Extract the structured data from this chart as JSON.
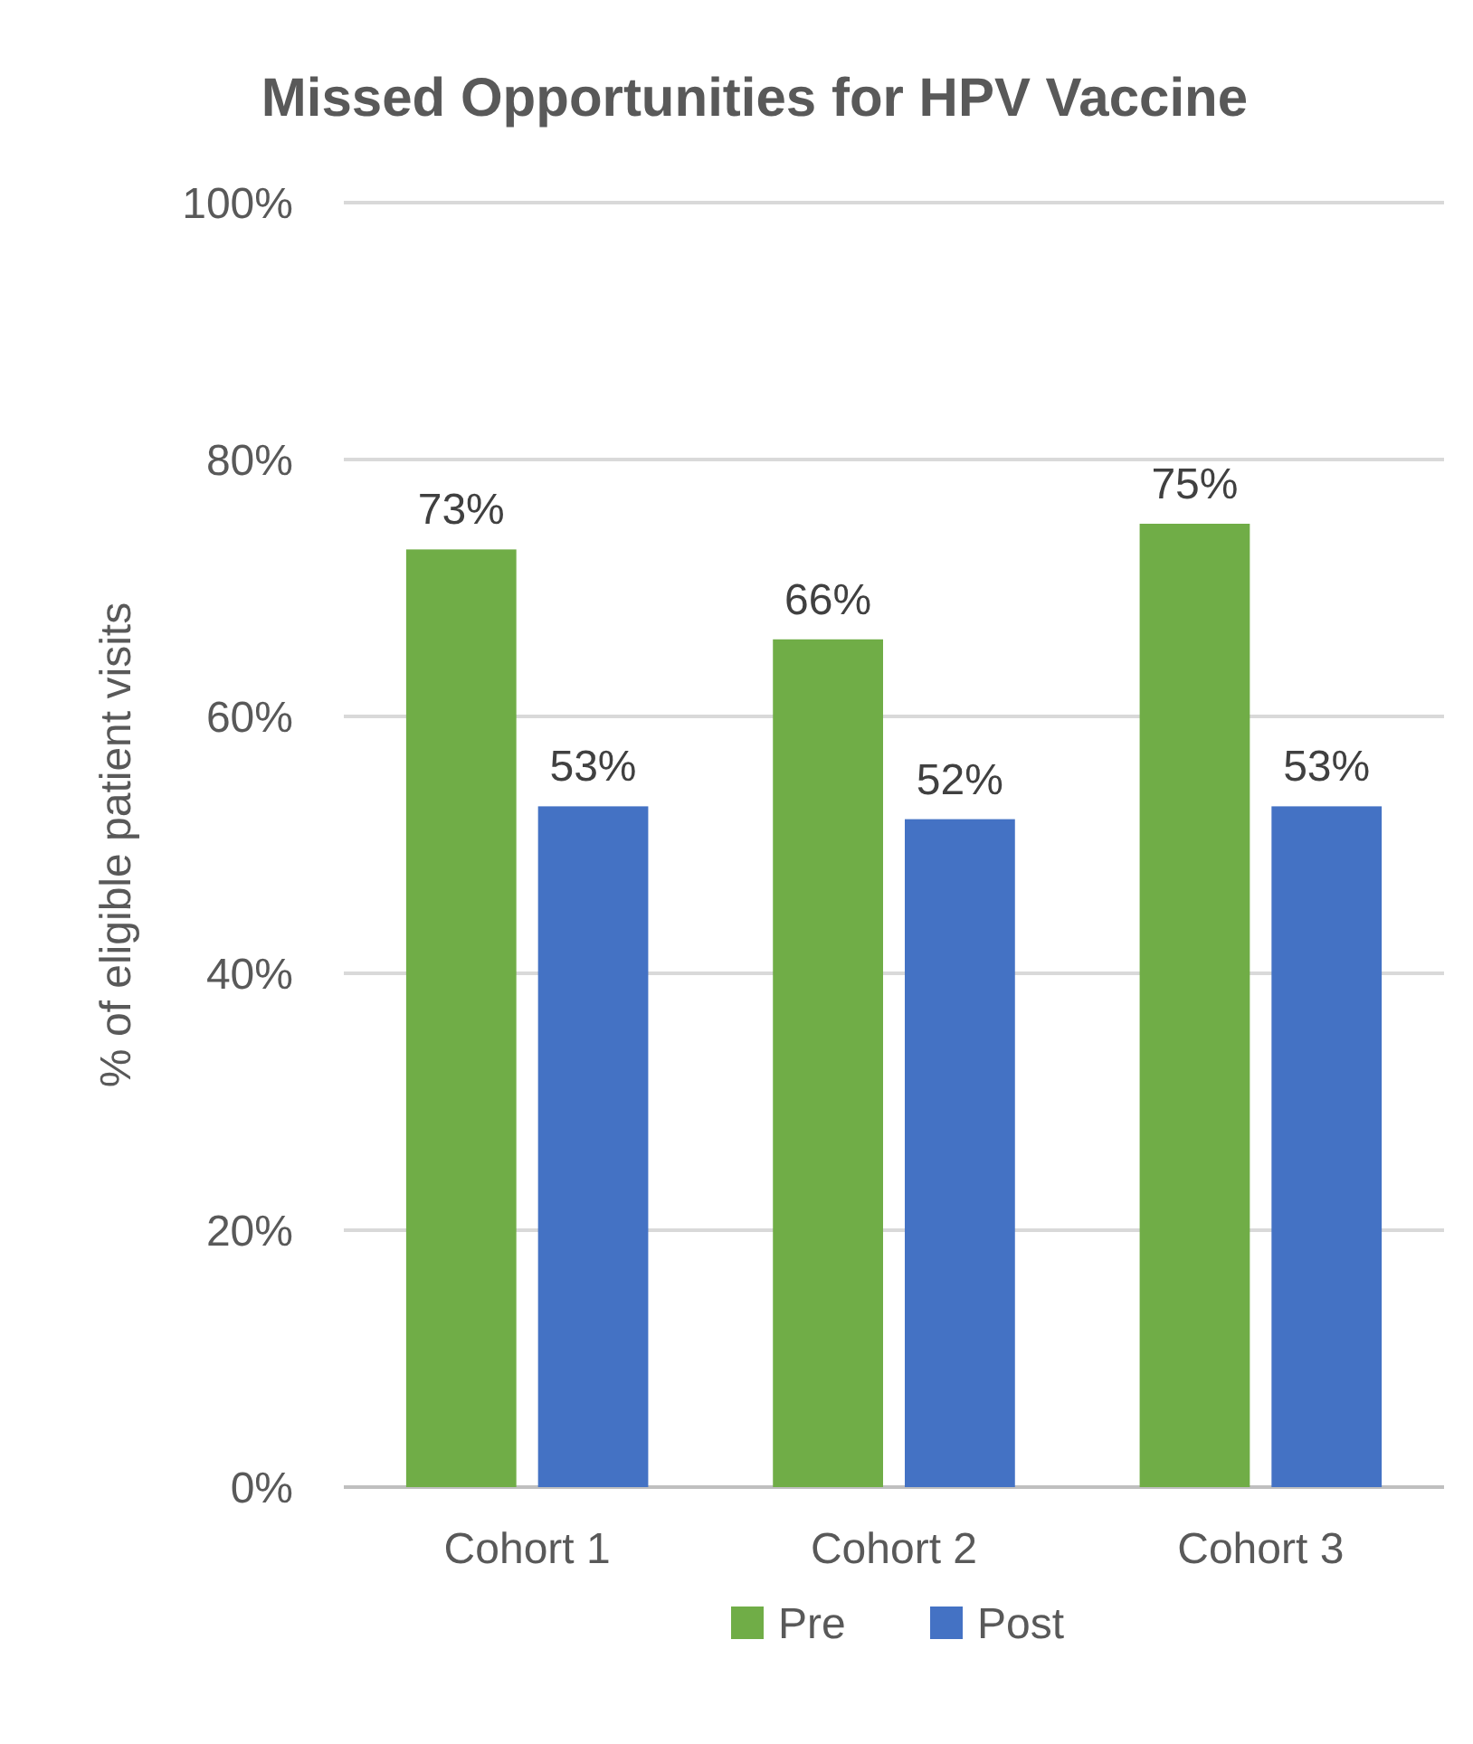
{
  "chart_data": {
    "type": "bar",
    "title": "Missed Opportunities for HPV Vaccine",
    "ylabel": "% of eligible patient visits",
    "categories": [
      "Cohort 1",
      "Cohort 2",
      "Cohort 3"
    ],
    "series": [
      {
        "name": "Pre",
        "color": "#70ad47",
        "values": [
          73,
          66,
          75
        ],
        "value_labels": [
          "73%",
          "66%",
          "75%"
        ]
      },
      {
        "name": "Post",
        "color": "#4472c4",
        "values": [
          53,
          52,
          53
        ],
        "value_labels": [
          "53%",
          "52%",
          "53%"
        ]
      }
    ],
    "ylim": [
      0,
      100
    ],
    "yticks": [
      {
        "value": 0,
        "label": "0%"
      },
      {
        "value": 20,
        "label": "20%"
      },
      {
        "value": 40,
        "label": "40%"
      },
      {
        "value": 60,
        "label": "60%"
      },
      {
        "value": 80,
        "label": "80%"
      },
      {
        "value": 100,
        "label": "100%"
      }
    ],
    "grid": "y",
    "legend": "bottom"
  }
}
